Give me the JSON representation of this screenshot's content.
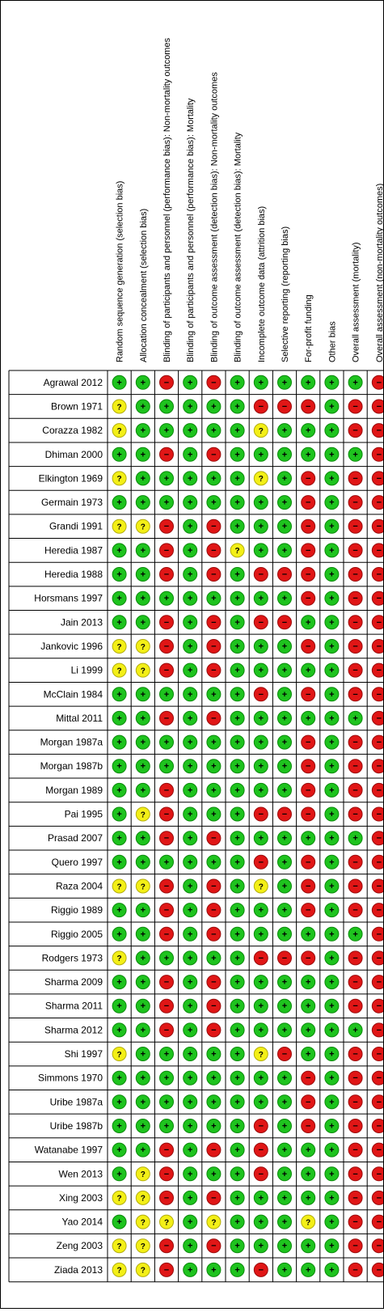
{
  "colors": {
    "low": "#1ec31e",
    "low_ring": "#0b8a0b",
    "unclear": "#f3ef17",
    "unclear_ring": "#b3ae0c",
    "high": "#e01616",
    "high_ring": "#9a0d0d",
    "grid": "#000000",
    "text": "#000000"
  },
  "symbols": {
    "low": "+",
    "unclear": "?",
    "high": "−"
  },
  "domains": [
    "Random sequence generation (selection bias)",
    "Allocation concealment (selection bias)",
    "Blinding of participants and personnel (performance bias): Non-mortality outcomes",
    "Blinding of participants and personnel (performance bias): Mortality",
    "Blinding of outcome assessment (detection bias): Non-mortality outcomes",
    "Blinding of outcome assessment (detection bias): Mortality",
    "Incomplete outcome data (attrition bias)",
    "Selective reporting (reporting bias)",
    "For-profit funding",
    "Other bias",
    "Overall assessment (mortality)",
    "Overall assessment (non-mortality outcomes)"
  ],
  "studies": [
    {
      "name": "Agrawal 2012",
      "ratings": [
        "low",
        "low",
        "high",
        "low",
        "high",
        "low",
        "low",
        "low",
        "low",
        "low",
        "low",
        "high"
      ]
    },
    {
      "name": "Brown 1971",
      "ratings": [
        "unclear",
        "low",
        "low",
        "low",
        "low",
        "low",
        "high",
        "high",
        "high",
        "low",
        "high",
        "high"
      ]
    },
    {
      "name": "Corazza 1982",
      "ratings": [
        "unclear",
        "low",
        "low",
        "low",
        "low",
        "low",
        "unclear",
        "low",
        "low",
        "low",
        "high",
        "high"
      ]
    },
    {
      "name": "Dhiman 2000",
      "ratings": [
        "low",
        "low",
        "high",
        "low",
        "high",
        "low",
        "low",
        "low",
        "low",
        "low",
        "low",
        "high"
      ]
    },
    {
      "name": "Elkington 1969",
      "ratings": [
        "unclear",
        "low",
        "low",
        "low",
        "low",
        "low",
        "unclear",
        "low",
        "high",
        "low",
        "high",
        "high"
      ]
    },
    {
      "name": "Germain 1973",
      "ratings": [
        "low",
        "low",
        "low",
        "low",
        "low",
        "low",
        "low",
        "low",
        "high",
        "low",
        "high",
        "high"
      ]
    },
    {
      "name": "Grandi 1991",
      "ratings": [
        "unclear",
        "unclear",
        "high",
        "low",
        "high",
        "low",
        "low",
        "low",
        "high",
        "low",
        "high",
        "high"
      ]
    },
    {
      "name": "Heredia 1987",
      "ratings": [
        "low",
        "low",
        "high",
        "low",
        "high",
        "unclear",
        "low",
        "low",
        "high",
        "low",
        "high",
        "high"
      ]
    },
    {
      "name": "Heredia 1988",
      "ratings": [
        "low",
        "low",
        "high",
        "low",
        "high",
        "low",
        "high",
        "high",
        "high",
        "low",
        "high",
        "high"
      ]
    },
    {
      "name": "Horsmans 1997",
      "ratings": [
        "low",
        "low",
        "low",
        "low",
        "low",
        "low",
        "low",
        "low",
        "high",
        "low",
        "high",
        "high"
      ]
    },
    {
      "name": "Jain 2013",
      "ratings": [
        "low",
        "low",
        "high",
        "low",
        "high",
        "low",
        "high",
        "high",
        "low",
        "low",
        "high",
        "high"
      ]
    },
    {
      "name": "Jankovic 1996",
      "ratings": [
        "unclear",
        "unclear",
        "high",
        "low",
        "high",
        "low",
        "low",
        "low",
        "high",
        "low",
        "high",
        "high"
      ]
    },
    {
      "name": "Li 1999",
      "ratings": [
        "unclear",
        "unclear",
        "high",
        "low",
        "high",
        "low",
        "low",
        "low",
        "low",
        "low",
        "high",
        "high"
      ]
    },
    {
      "name": "McClain 1984",
      "ratings": [
        "low",
        "low",
        "low",
        "low",
        "low",
        "low",
        "high",
        "low",
        "high",
        "low",
        "high",
        "high"
      ]
    },
    {
      "name": "Mittal 2011",
      "ratings": [
        "low",
        "low",
        "high",
        "low",
        "high",
        "low",
        "low",
        "low",
        "low",
        "low",
        "low",
        "high"
      ]
    },
    {
      "name": "Morgan 1987a",
      "ratings": [
        "low",
        "low",
        "low",
        "low",
        "low",
        "low",
        "low",
        "low",
        "high",
        "low",
        "high",
        "high"
      ]
    },
    {
      "name": "Morgan 1987b",
      "ratings": [
        "low",
        "low",
        "low",
        "low",
        "low",
        "low",
        "low",
        "low",
        "high",
        "low",
        "high",
        "high"
      ]
    },
    {
      "name": "Morgan 1989",
      "ratings": [
        "low",
        "low",
        "high",
        "low",
        "low",
        "low",
        "low",
        "low",
        "high",
        "low",
        "high",
        "high"
      ]
    },
    {
      "name": "Pai 1995",
      "ratings": [
        "low",
        "unclear",
        "high",
        "low",
        "low",
        "low",
        "high",
        "high",
        "high",
        "low",
        "high",
        "high"
      ]
    },
    {
      "name": "Prasad 2007",
      "ratings": [
        "low",
        "low",
        "high",
        "low",
        "high",
        "low",
        "low",
        "low",
        "low",
        "low",
        "low",
        "high"
      ]
    },
    {
      "name": "Quero 1997",
      "ratings": [
        "low",
        "low",
        "low",
        "low",
        "low",
        "low",
        "high",
        "low",
        "high",
        "low",
        "high",
        "high"
      ]
    },
    {
      "name": "Raza 2004",
      "ratings": [
        "unclear",
        "unclear",
        "high",
        "low",
        "high",
        "low",
        "unclear",
        "low",
        "high",
        "low",
        "high",
        "high"
      ]
    },
    {
      "name": "Riggio 1989",
      "ratings": [
        "low",
        "low",
        "high",
        "low",
        "high",
        "low",
        "low",
        "low",
        "high",
        "low",
        "high",
        "high"
      ]
    },
    {
      "name": "Riggio 2005",
      "ratings": [
        "low",
        "low",
        "high",
        "low",
        "high",
        "low",
        "low",
        "low",
        "low",
        "low",
        "low",
        "high"
      ]
    },
    {
      "name": "Rodgers 1973",
      "ratings": [
        "unclear",
        "low",
        "low",
        "low",
        "low",
        "low",
        "high",
        "high",
        "high",
        "low",
        "high",
        "high"
      ]
    },
    {
      "name": "Sharma 2009",
      "ratings": [
        "low",
        "low",
        "high",
        "low",
        "high",
        "low",
        "low",
        "low",
        "low",
        "low",
        "high",
        "high"
      ]
    },
    {
      "name": "Sharma 2011",
      "ratings": [
        "low",
        "low",
        "high",
        "low",
        "high",
        "low",
        "low",
        "low",
        "low",
        "low",
        "high",
        "high"
      ]
    },
    {
      "name": "Sharma 2012",
      "ratings": [
        "low",
        "low",
        "high",
        "low",
        "high",
        "low",
        "low",
        "low",
        "low",
        "low",
        "low",
        "high"
      ]
    },
    {
      "name": "Shi 1997",
      "ratings": [
        "unclear",
        "low",
        "low",
        "low",
        "low",
        "low",
        "unclear",
        "high",
        "low",
        "low",
        "high",
        "high"
      ]
    },
    {
      "name": "Simmons 1970",
      "ratings": [
        "low",
        "low",
        "low",
        "low",
        "low",
        "low",
        "low",
        "low",
        "high",
        "low",
        "high",
        "high"
      ]
    },
    {
      "name": "Uribe 1987a",
      "ratings": [
        "low",
        "low",
        "low",
        "low",
        "low",
        "low",
        "low",
        "low",
        "high",
        "low",
        "high",
        "high"
      ]
    },
    {
      "name": "Uribe 1987b",
      "ratings": [
        "low",
        "low",
        "low",
        "low",
        "low",
        "low",
        "high",
        "low",
        "high",
        "low",
        "high",
        "high"
      ]
    },
    {
      "name": "Watanabe 1997",
      "ratings": [
        "low",
        "low",
        "high",
        "low",
        "high",
        "low",
        "high",
        "low",
        "low",
        "low",
        "high",
        "high"
      ]
    },
    {
      "name": "Wen 2013",
      "ratings": [
        "low",
        "unclear",
        "high",
        "low",
        "low",
        "low",
        "high",
        "low",
        "low",
        "low",
        "high",
        "high"
      ]
    },
    {
      "name": "Xing 2003",
      "ratings": [
        "unclear",
        "unclear",
        "high",
        "low",
        "high",
        "low",
        "low",
        "low",
        "low",
        "low",
        "high",
        "high"
      ]
    },
    {
      "name": "Yao 2014",
      "ratings": [
        "low",
        "unclear",
        "unclear",
        "low",
        "unclear",
        "low",
        "low",
        "low",
        "unclear",
        "low",
        "high",
        "high"
      ]
    },
    {
      "name": "Zeng 2003",
      "ratings": [
        "unclear",
        "unclear",
        "high",
        "low",
        "high",
        "low",
        "low",
        "low",
        "low",
        "low",
        "high",
        "high"
      ]
    },
    {
      "name": "Ziada 2013",
      "ratings": [
        "unclear",
        "unclear",
        "high",
        "low",
        "low",
        "low",
        "high",
        "low",
        "low",
        "low",
        "high",
        "high"
      ]
    }
  ]
}
